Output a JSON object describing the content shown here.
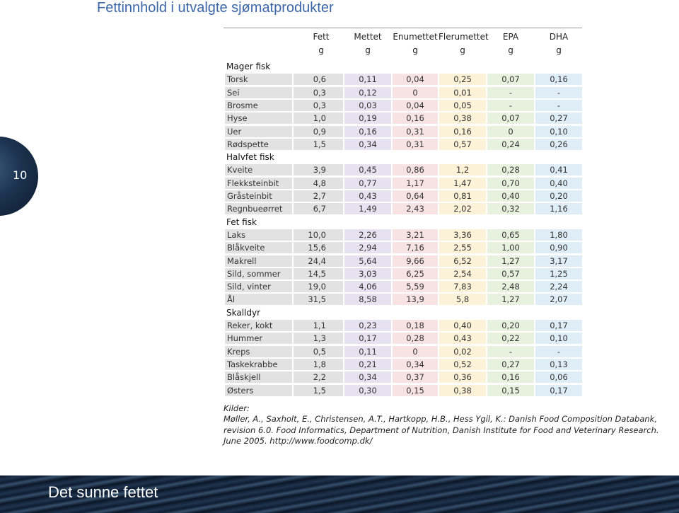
{
  "header": {
    "title": "Fettinnhold i utvalgte sjømatprodukter",
    "page_number": "10"
  },
  "table": {
    "columns": [
      {
        "name": "Fett",
        "unit": "g"
      },
      {
        "name": "Mettet",
        "unit": "g"
      },
      {
        "name": "Enumettet",
        "unit": "g"
      },
      {
        "name": "Flerumettet",
        "unit": "g"
      },
      {
        "name": "EPA",
        "unit": "g"
      },
      {
        "name": "DHA",
        "unit": "g"
      }
    ],
    "sections": [
      {
        "title": "Mager fisk",
        "rows": [
          [
            "Torsk",
            "0,6",
            "0,11",
            "0,04",
            "0,25",
            "0,07",
            "0,16"
          ],
          [
            "Sei",
            "0,3",
            "0,12",
            "0",
            "0,01",
            "-",
            "-"
          ],
          [
            "Brosme",
            "0,3",
            "0,03",
            "0,04",
            "0,05",
            "-",
            "-"
          ],
          [
            "Hyse",
            "1,0",
            "0,19",
            "0,16",
            "0,38",
            "0,07",
            "0,27"
          ],
          [
            "Uer",
            "0,9",
            "0,16",
            "0,31",
            "0,16",
            "0",
            "0,10"
          ],
          [
            "Rødspette",
            "1,5",
            "0,34",
            "0,31",
            "0,57",
            "0,24",
            "0,26"
          ]
        ]
      },
      {
        "title": "Halvfet fisk",
        "rows": [
          [
            "Kveite",
            "3,9",
            "0,45",
            "0,86",
            "1,2",
            "0,28",
            "0,41"
          ],
          [
            "Flekksteinbit",
            "4,8",
            "0,77",
            "1,17",
            "1,47",
            "0,70",
            "0,40"
          ],
          [
            "Gråsteinbit",
            "2,7",
            "0,43",
            "0,64",
            "0,81",
            "0,40",
            "0,20"
          ],
          [
            "Regnbueørret",
            "6,7",
            "1,49",
            "2,43",
            "2,02",
            "0,32",
            "1,16"
          ]
        ]
      },
      {
        "title": "Fet fisk",
        "rows": [
          [
            "Laks",
            "10,0",
            "2,26",
            "3,21",
            "3,36",
            "0,65",
            "1,80"
          ],
          [
            "Blåkveite",
            "15,6",
            "2,94",
            "7,16",
            "2,55",
            "1,00",
            "0,90"
          ],
          [
            "Makrell",
            "24,4",
            "5,64",
            "9,66",
            "6,52",
            "1,27",
            "3,17"
          ],
          [
            "Sild, sommer",
            "14,5",
            "3,03",
            "6,25",
            "2,54",
            "0,57",
            "1,25"
          ],
          [
            "Sild, vinter",
            "19,0",
            "4,06",
            "5,59",
            "7,83",
            "2,48",
            "2,24"
          ],
          [
            "Ål",
            "31,5",
            "8,58",
            "13,9",
            "5,8",
            "1,27",
            "2,07"
          ]
        ]
      },
      {
        "title": "Skalldyr",
        "rows": [
          [
            "Reker, kokt",
            "1,1",
            "0,23",
            "0,18",
            "0,40",
            "0,20",
            "0,17"
          ],
          [
            "Hummer",
            "1,3",
            "0,17",
            "0,28",
            "0,43",
            "0,22",
            "0,10"
          ],
          [
            "Kreps",
            "0,5",
            "0,11",
            "0",
            "0,02",
            "-",
            "-"
          ],
          [
            "Taskekrabbe",
            "1,8",
            "0,21",
            "0,34",
            "0,52",
            "0,27",
            "0,13"
          ],
          [
            "Blåskjell",
            "2,2",
            "0,34",
            "0,37",
            "0,36",
            "0,16",
            "0,06"
          ],
          [
            "Østers",
            "1,5",
            "0,30",
            "0,15",
            "0,38",
            "0,15",
            "0,17"
          ]
        ]
      }
    ]
  },
  "sources": {
    "label": "Kilder:",
    "lines": [
      "Møller, A., Saxholt, E., Christensen, A.T., Hartkopp, H.B., Hess Ygil, K.: Danish Food Composition Databank,",
      "revision 6.0. Food Informatics, Department of Nutrition, Danish Institute for Food and Veterinary Research.",
      "June 2005. http://www.foodcomp.dk/"
    ]
  },
  "footer": {
    "text": "Det sunne fettet"
  }
}
